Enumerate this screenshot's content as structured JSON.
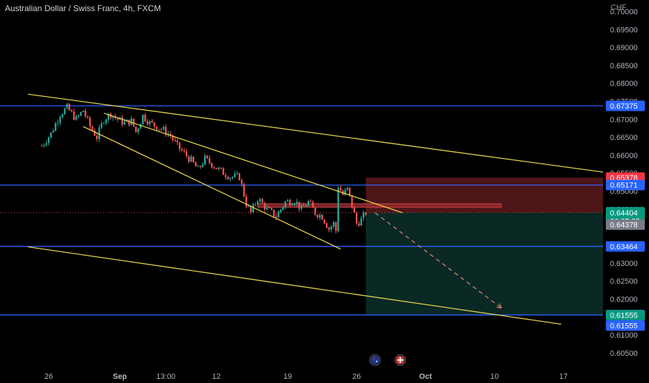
{
  "header": {
    "symbol_title": "Australian Dollar / Swiss Franc, 4h, FXCM",
    "currency": "CHF"
  },
  "colors": {
    "background": "#000000",
    "up": "#26a69a",
    "down": "#ef5350",
    "trendline": "#e8d44d",
    "hline": "#2962ff",
    "stop_zone": "#5b1a1c",
    "target_zone": "#0b2e28",
    "axis_text": "#b2b5be"
  },
  "chart_data": {
    "type": "candlestick",
    "timeframe": "4h",
    "y_axis": {
      "min": 0.6005,
      "max": 0.7032,
      "tick_labels": [
        "0.70000",
        "0.69500",
        "0.69000",
        "0.68500",
        "0.68000",
        "0.67500",
        "0.67000",
        "0.66500",
        "0.66000",
        "0.65500",
        "0.65000",
        "0.64500",
        "0.64000",
        "0.63500",
        "0.63000",
        "0.62500",
        "0.62000",
        "0.61500",
        "0.61000",
        "0.60500"
      ]
    },
    "x_axis": {
      "tick_labels": [
        {
          "label": "26",
          "bar": -17
        },
        {
          "label": "Sep",
          "bar": 14
        },
        {
          "label": "13:00",
          "bar": 34
        },
        {
          "label": "12",
          "bar": 56
        },
        {
          "label": "19",
          "bar": 87
        },
        {
          "label": "26",
          "bar": 117
        },
        {
          "label": "Oct",
          "bar": 147
        },
        {
          "label": "10",
          "bar": 177
        },
        {
          "label": "17",
          "bar": 207
        }
      ]
    },
    "price_path": [
      [
        -20,
        0.6626
      ],
      [
        -16,
        0.666
      ],
      [
        -12,
        0.6715
      ],
      [
        -9,
        0.6732
      ],
      [
        -5,
        0.67
      ],
      [
        -2,
        0.6725
      ],
      [
        1,
        0.668
      ],
      [
        4,
        0.665
      ],
      [
        7,
        0.67
      ],
      [
        10,
        0.6715
      ],
      [
        13,
        0.67
      ],
      [
        16,
        0.669
      ],
      [
        19,
        0.6695
      ],
      [
        21,
        0.6665
      ],
      [
        24,
        0.671
      ],
      [
        27,
        0.669
      ],
      [
        30,
        0.668
      ],
      [
        33,
        0.667
      ],
      [
        36,
        0.6655
      ],
      [
        39,
        0.6625
      ],
      [
        42,
        0.6605
      ],
      [
        45,
        0.6585
      ],
      [
        48,
        0.656
      ],
      [
        51,
        0.659
      ],
      [
        54,
        0.6575
      ],
      [
        58,
        0.6555
      ],
      [
        62,
        0.654
      ],
      [
        66,
        0.654
      ],
      [
        69,
        0.6465
      ],
      [
        71,
        0.644
      ],
      [
        74,
        0.648
      ],
      [
        78,
        0.645
      ],
      [
        82,
        0.643
      ],
      [
        86,
        0.647
      ],
      [
        90,
        0.6475
      ],
      [
        93,
        0.645
      ],
      [
        96,
        0.647
      ],
      [
        99,
        0.644
      ],
      [
        102,
        0.643
      ],
      [
        105,
        0.6395
      ],
      [
        107,
        0.641
      ],
      [
        108,
        0.639
      ],
      [
        109,
        0.6515
      ],
      [
        111,
        0.649
      ],
      [
        113,
        0.6505
      ],
      [
        115,
        0.646
      ],
      [
        117,
        0.641
      ],
      [
        119,
        0.642
      ],
      [
        121,
        0.644
      ]
    ],
    "horizontal_levels": [
      {
        "price": 0.67375,
        "label": "0.67375",
        "color": "#2962ff"
      },
      {
        "price": 0.65171,
        "label": "0.65171",
        "color": "#2962ff"
      },
      {
        "price": 0.63464,
        "label": "0.63464",
        "color": "#2962ff"
      },
      {
        "price": 0.61555,
        "label": "0.61555",
        "color": "#2962ff"
      }
    ],
    "trendlines": [
      {
        "from": [
          -26,
          0.677
        ],
        "to": [
          236,
          0.6543
        ]
      },
      {
        "from": [
          -26,
          0.6345
        ],
        "to": [
          206,
          0.613
        ]
      },
      {
        "from": [
          7,
          0.6717
        ],
        "to": [
          137,
          0.644
        ]
      },
      {
        "from": [
          -2,
          0.668
        ],
        "to": [
          110,
          0.6339
        ]
      }
    ],
    "position": {
      "entry": 0.64404,
      "stop": 0.65378,
      "target": 0.61555,
      "start_bar": 121,
      "end_bar": 236,
      "entry_label": "0.64404",
      "countdown": "02:27:35",
      "stop_label": "0.65378",
      "target_label": "0.61555"
    },
    "resistance_zone": {
      "top": 0.6465,
      "bottom": 0.6455,
      "start_bar": 74,
      "end_bar": 180
    },
    "projection_path": {
      "from": [
        125,
        0.644
      ],
      "to": [
        180,
        0.6175
      ]
    },
    "last_price": 0.64404,
    "last_price_secondary": "0.64378",
    "target_label_secondary": "0.61555",
    "event_icons": [
      {
        "name": "au-flag-icon",
        "bar": 125
      },
      {
        "name": "ch-flag-icon",
        "bar": 136
      }
    ]
  }
}
